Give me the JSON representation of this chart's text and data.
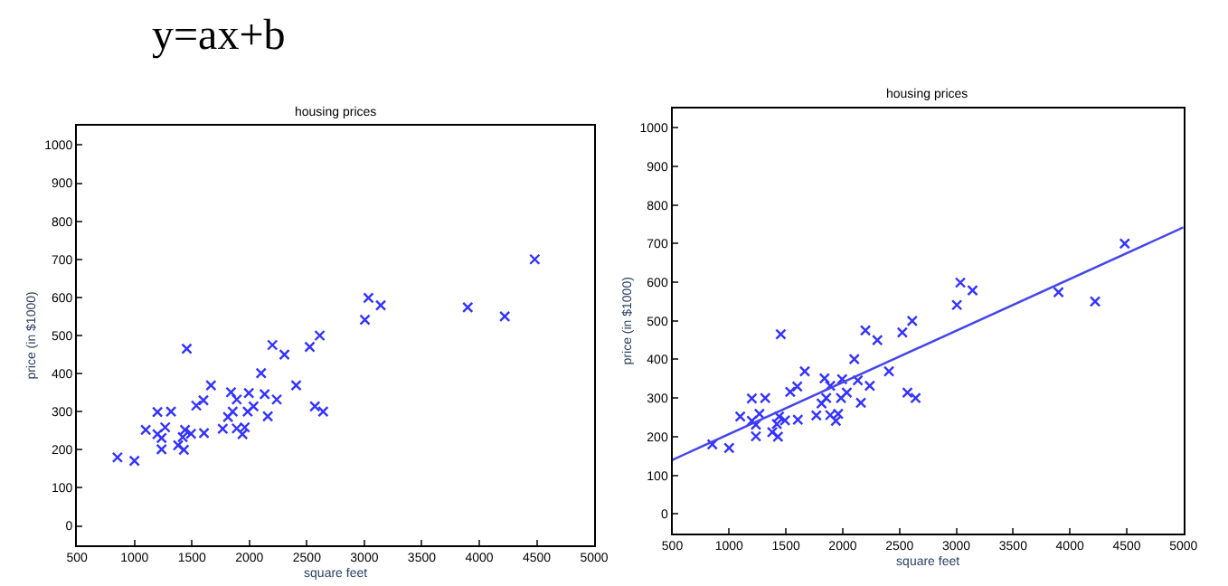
{
  "chart_data": [
    {
      "type": "other",
      "title": "y=ax+b"
    },
    {
      "type": "scatter",
      "title": "housing prices",
      "xlabel": "square feet",
      "ylabel": "price (in $1000)",
      "marker": "cross",
      "xlim": [
        500,
        5000
      ],
      "xticks": [
        500,
        1000,
        1500,
        2000,
        2500,
        3000,
        3500,
        4000,
        4500,
        5000
      ],
      "ylim": [
        -50,
        1050
      ],
      "yticks": [
        0,
        100,
        200,
        300,
        400,
        500,
        600,
        700,
        800,
        900,
        1000
      ],
      "series": [
        {
          "color": "#3333ff",
          "x": [
            852,
            1000,
            1098,
            1200,
            1200,
            1236,
            1236,
            1267,
            1318,
            1380,
            1420,
            1430,
            1440,
            1455,
            1492,
            1538,
            1600,
            1605,
            1666,
            1768,
            1814,
            1840,
            1855,
            1890,
            1890,
            1940,
            1960,
            1985,
            1995,
            2036,
            2102,
            2133,
            2160,
            2200,
            2238,
            2305,
            2407,
            2525,
            2570,
            2612,
            2642,
            3005,
            3036,
            3143,
            3900,
            4222,
            4483
          ],
          "values": [
            180,
            171,
            252,
            299,
            241,
            231,
            201,
            259,
            300,
            212,
            233,
            200,
            252,
            465,
            242,
            316,
            330,
            244,
            369,
            255,
            286,
            351,
            300,
            332,
            256,
            241,
            259,
            300,
            349,
            314,
            401,
            346,
            288,
            475,
            332,
            450,
            369,
            470,
            314,
            500,
            300,
            541,
            599,
            579,
            574,
            550,
            700
          ]
        }
      ]
    },
    {
      "type": "scatter",
      "title": "housing prices",
      "xlabel": "square feet",
      "ylabel": "price (in $1000)",
      "marker": "cross",
      "xlim": [
        500,
        5000
      ],
      "xticks": [
        500,
        1000,
        1500,
        2000,
        2500,
        3000,
        3500,
        4000,
        4500,
        5000
      ],
      "ylim": [
        -50,
        1050
      ],
      "yticks": [
        0,
        100,
        200,
        300,
        400,
        500,
        600,
        700,
        800,
        900,
        1000
      ],
      "series": [
        {
          "color": "#3333ff",
          "x": [
            852,
            1000,
            1098,
            1200,
            1200,
            1236,
            1236,
            1267,
            1318,
            1380,
            1420,
            1430,
            1440,
            1455,
            1492,
            1538,
            1600,
            1605,
            1666,
            1768,
            1814,
            1840,
            1855,
            1890,
            1890,
            1940,
            1960,
            1985,
            1995,
            2036,
            2102,
            2133,
            2160,
            2200,
            2238,
            2305,
            2407,
            2525,
            2570,
            2612,
            2642,
            3005,
            3036,
            3143,
            3900,
            4222,
            4483
          ],
          "values": [
            180,
            171,
            252,
            299,
            241,
            231,
            201,
            259,
            300,
            212,
            233,
            200,
            252,
            465,
            242,
            316,
            330,
            244,
            369,
            255,
            286,
            351,
            300,
            332,
            256,
            241,
            259,
            300,
            349,
            314,
            401,
            346,
            288,
            475,
            332,
            450,
            369,
            470,
            314,
            500,
            300,
            541,
            599,
            579,
            574,
            550,
            700
          ]
        },
        {
          "type": "line",
          "marker": "none",
          "color": "#4444ee",
          "x": [
            500,
            5000
          ],
          "values": [
            140,
            742
          ]
        }
      ]
    }
  ]
}
